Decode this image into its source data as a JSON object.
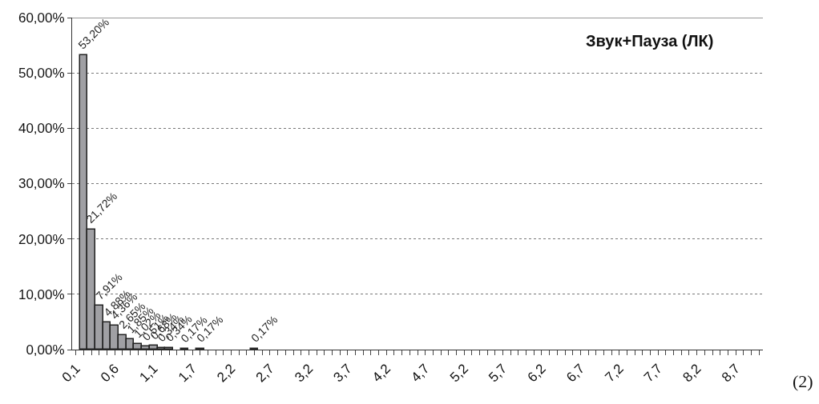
{
  "chart_data": {
    "type": "bar",
    "title": "Звук+Пауза (ЛК)",
    "annotations": [
      "(2)"
    ],
    "categories": [
      "0,1",
      null,
      null,
      null,
      null,
      "0,6",
      null,
      null,
      null,
      null,
      "1,1",
      null,
      null,
      null,
      null,
      "1,7",
      null,
      null,
      null,
      null,
      "2,2",
      null,
      null,
      null,
      null,
      "2,7",
      null,
      null,
      null,
      null,
      "3,2",
      null,
      null,
      null,
      null,
      "3,7",
      null,
      null,
      null,
      null,
      "4,2",
      null,
      null,
      null,
      null,
      "4,7",
      null,
      null,
      null,
      null,
      "5,2",
      null,
      null,
      null,
      null,
      "5,7",
      null,
      null,
      null,
      null,
      "6,2",
      null,
      null,
      null,
      null,
      "6,7",
      null,
      null,
      null,
      null,
      "7,2",
      null,
      null,
      null,
      null,
      "7,7",
      null,
      null,
      null,
      null,
      "8,2",
      null,
      null,
      null,
      null,
      "8,7",
      null,
      null,
      null
    ],
    "values": [
      0,
      53.2,
      21.72,
      7.91,
      4.88,
      4.36,
      2.65,
      1.85,
      1.02,
      0.51,
      0.68,
      0.34,
      0.34,
      0,
      0.17,
      0,
      0.17,
      0,
      0,
      0,
      0,
      0,
      0,
      0.17,
      0,
      0,
      0,
      0,
      0,
      0,
      0,
      0,
      0,
      0,
      0,
      0,
      0,
      0,
      0,
      0,
      0,
      0,
      0,
      0,
      0,
      0,
      0,
      0,
      0,
      0,
      0,
      0,
      0,
      0,
      0,
      0,
      0,
      0,
      0,
      0,
      0,
      0,
      0,
      0,
      0,
      0,
      0,
      0,
      0,
      0,
      0,
      0,
      0,
      0,
      0,
      0,
      0,
      0,
      0,
      0,
      0,
      0,
      0,
      0,
      0,
      0,
      0,
      0,
      0
    ],
    "value_labels": [
      null,
      "53,20%",
      "21,72%",
      "7,91%",
      "4,88%",
      "4,36%",
      "2,65%",
      "1,85%",
      "1,02%",
      "0,51%",
      "0,68%",
      "0,34%",
      "0,34%",
      null,
      "0,17%",
      null,
      "0,17%",
      null,
      null,
      null,
      null,
      null,
      null,
      "0,17%",
      null,
      null,
      null,
      null,
      null,
      null,
      null,
      null,
      null,
      null,
      null,
      null,
      null,
      null,
      null,
      null,
      null,
      null,
      null,
      null,
      null,
      null,
      null,
      null,
      null,
      null,
      null,
      null,
      null,
      null,
      null,
      null,
      null,
      null,
      null,
      null,
      null,
      null,
      null,
      null,
      null,
      null,
      null,
      null,
      null,
      null,
      null,
      null,
      null,
      null,
      null,
      null,
      null,
      null,
      null,
      null,
      null,
      null,
      null,
      null,
      null,
      null,
      null,
      null,
      null
    ],
    "color": "#a0a0a4",
    "ylim": [
      0,
      60
    ],
    "yticks": [
      {
        "value": 0,
        "label": "0,00%"
      },
      {
        "value": 10,
        "label": "10,00%"
      },
      {
        "value": 20,
        "label": "20,00%"
      },
      {
        "value": 30,
        "label": "30,00%"
      },
      {
        "value": 40,
        "label": "40,00%"
      },
      {
        "value": 50,
        "label": "50,00%"
      },
      {
        "value": 60,
        "label": "60,00%"
      }
    ],
    "grid": "y"
  }
}
